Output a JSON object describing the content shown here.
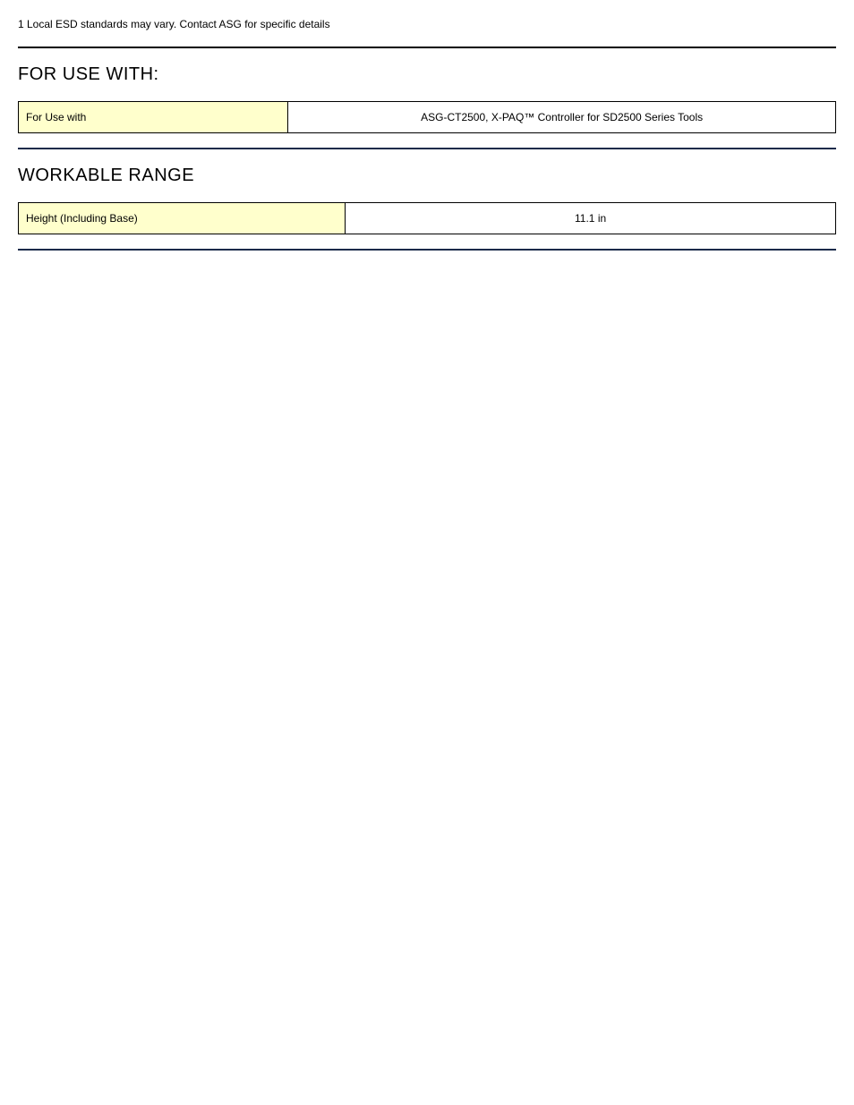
{
  "footnote": "1 Local ESD standards may vary. Contact ASG for specific details",
  "sections": [
    {
      "heading": "FOR USE WITH:",
      "row": {
        "label": "For Use with",
        "value": "ASG-CT2500, X-PAQ™ Controller for SD2500 Series Tools"
      },
      "label_bg": "#ffffcc",
      "value_bg": "#ffffff",
      "border_color": "#000000",
      "divider_color": "#1a2a4a",
      "label_width_pct": 33
    },
    {
      "heading": "WORKABLE RANGE",
      "row": {
        "label": "Height (Including Base)",
        "value": "11.1 in"
      },
      "label_bg": "#ffffcc",
      "value_bg": "#ffffff",
      "border_color": "#000000",
      "divider_color": "#1a2a4a",
      "label_width_pct": 40
    }
  ]
}
